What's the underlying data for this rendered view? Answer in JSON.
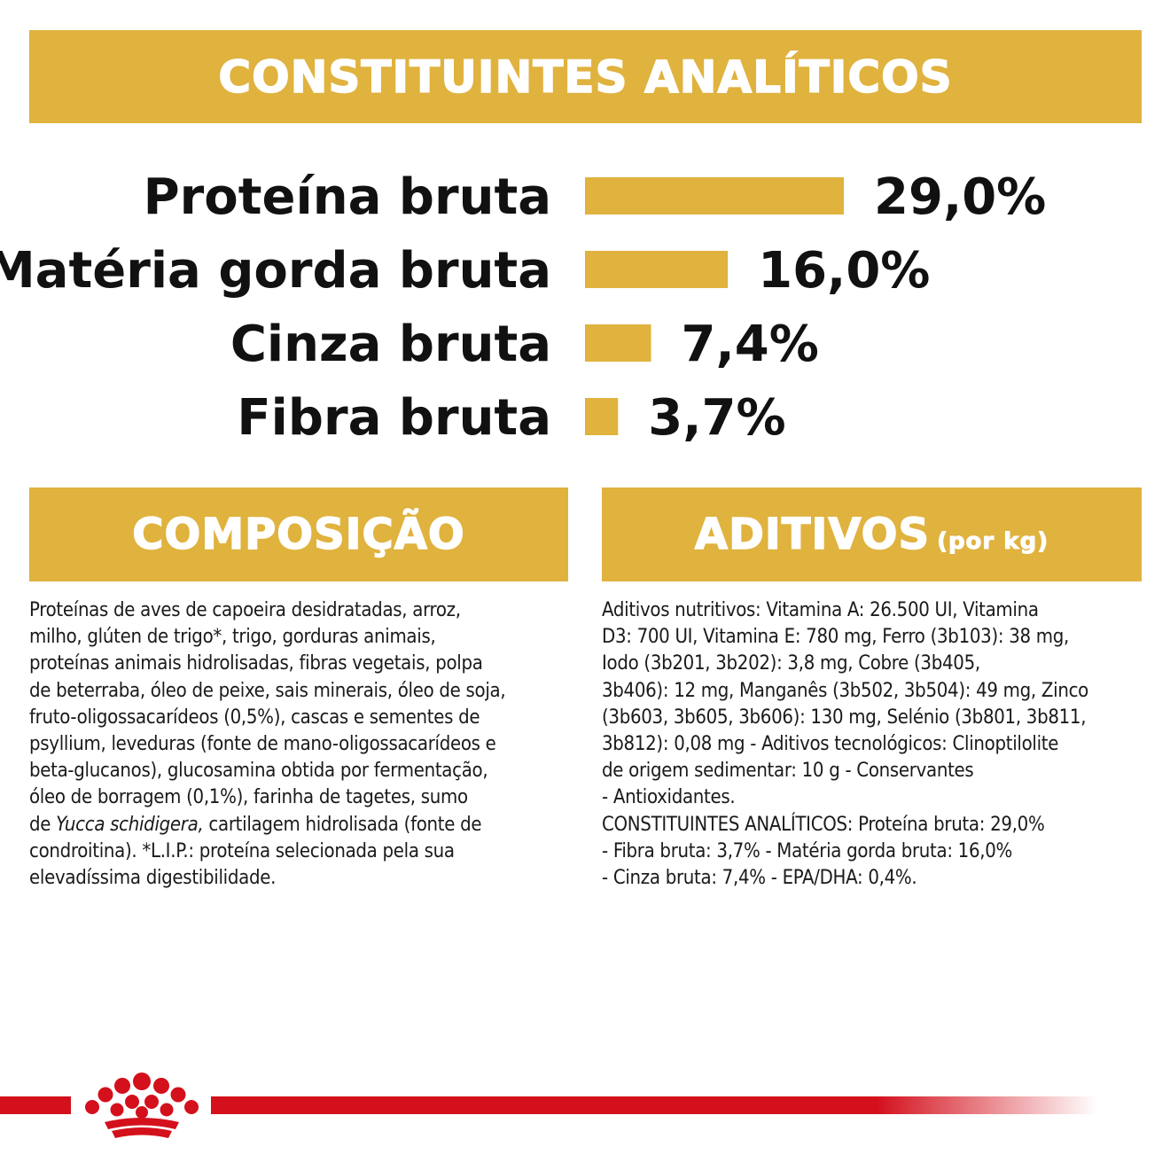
{
  "header": {
    "title": "CONSTITUINTES ANALÍTICOS"
  },
  "chart_data": {
    "type": "bar",
    "orientation": "horizontal",
    "categories": [
      "Proteína bruta",
      "Matéria gorda bruta",
      "Cinza bruta",
      "Fibra bruta"
    ],
    "values": [
      29.0,
      16.0,
      7.4,
      3.7
    ],
    "value_labels": [
      "29,0%",
      "16,0%",
      "7,4%",
      "3,7%"
    ],
    "unit": "%",
    "bar_color": "#e0b23e",
    "grid": false,
    "legend": "none"
  },
  "composicao": {
    "title": "COMPOSIÇÃO",
    "text_before": "Proteínas de aves de capoeira desidratadas, arroz,\nmilho, glúten de trigo*, trigo, gorduras animais,\nproteínas animais hidrolisadas, fibras vegetais, polpa\nde beterraba, óleo de peixe, sais minerais, óleo de soja,\nfruto-oligossacarídeos (0,5%), cascas e sementes de\npsyllium, leveduras (fonte de mano-oligossacarídeos e\nbeta-glucanos), glucosamina obtida por fermentação,\nóleo de borragem (0,1%), farinha de tagetes, sumo\nde ",
    "text_italic": "Yucca schidigera,",
    "text_after": " cartilagem hidrolisada (fonte de\ncondroitina). *L.I.P.: proteína selecionada pela sua\nelevadíssima digestibilidade."
  },
  "aditivos": {
    "title": "ADITIVOS",
    "title_suffix": "(por kg)",
    "text": "Aditivos nutritivos: Vitamina A: 26.500 UI, Vitamina\nD3: 700 UI, Vitamina E: 780 mg, Ferro (3b103): 38 mg,\nIodo (3b201, 3b202): 3,8 mg, Cobre (3b405,\n3b406): 12 mg, Manganês (3b502, 3b504): 49 mg, Zinco\n(3b603, 3b605, 3b606): 130 mg, Selénio (3b801, 3b811,\n3b812): 0,08 mg - Aditivos tecnológicos: Clinoptilolite\nde origem sedimentar: 10 g - Conservantes\n- Antioxidantes.\nCONSTITUINTES ANALÍTICOS: Proteína bruta: 29,0%\n- Fibra bruta: 3,7% - Matéria gorda bruta: 16,0%\n- Cinza bruta: 7,4% - EPA/DHA: 0,4%."
  },
  "footer": {
    "logo_icon": "royal-crown-icon",
    "line_color": "#d3101c"
  }
}
